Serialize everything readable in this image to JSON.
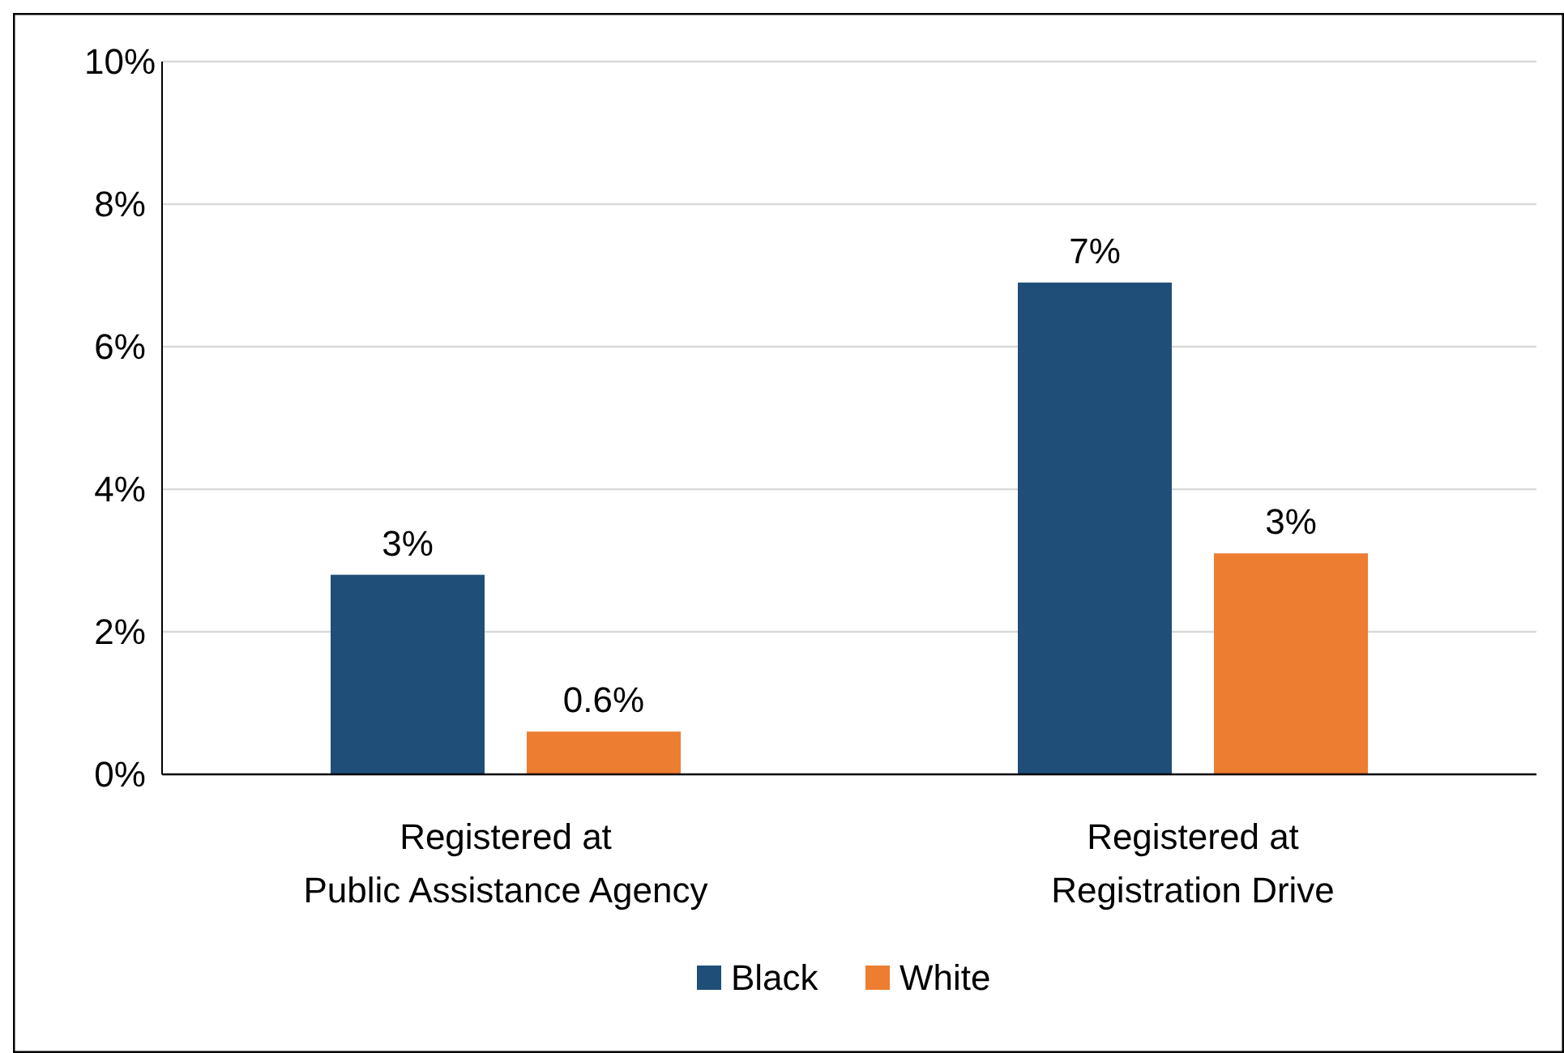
{
  "chart_data": {
    "type": "bar",
    "categories": [
      "Registered at\nPublic Assistance Agency",
      "Registered at\nRegistration Drive"
    ],
    "series": [
      {
        "name": "Black",
        "color": "#1f4e79",
        "values": [
          2.8,
          6.9
        ],
        "value_labels": [
          "3%",
          "7%"
        ]
      },
      {
        "name": "White",
        "color": "#ed7d31",
        "values": [
          0.6,
          3.1
        ],
        "value_labels": [
          "0.6%",
          "3%"
        ]
      }
    ],
    "ylim": [
      0,
      10
    ],
    "yticks": [
      {
        "value": 0,
        "label": "0%"
      },
      {
        "value": 2,
        "label": "2%"
      },
      {
        "value": 4,
        "label": "4%"
      },
      {
        "value": 6,
        "label": "6%"
      },
      {
        "value": 8,
        "label": "8%"
      },
      {
        "value": 10,
        "label": "10%"
      }
    ],
    "grid": "y",
    "legend": "bottom"
  }
}
